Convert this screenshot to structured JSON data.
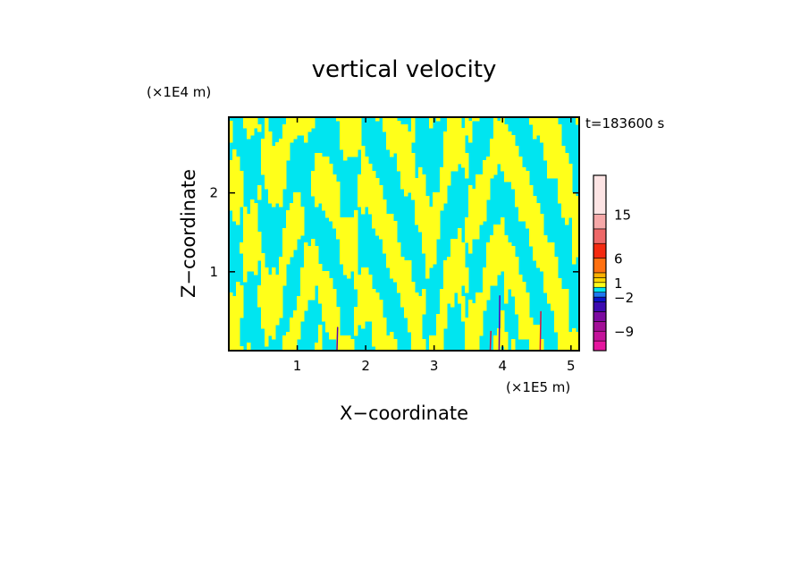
{
  "chart_data": {
    "type": "heatmap",
    "title": "vertical velocity",
    "xlabel": "X−coordinate",
    "ylabel": "Z−coordinate",
    "x_scale_label": "(×1E5 m)",
    "y_scale_label": "(×1E4 m)",
    "time_label": "t=183600 s",
    "xlim": [
      0,
      5.12
    ],
    "ylim": [
      0,
      2.96
    ],
    "x_ticks": [
      1,
      2,
      3,
      4,
      5
    ],
    "x_tick_labels": [
      "1",
      "2",
      "3",
      "4",
      "5"
    ],
    "y_ticks": [
      1,
      2
    ],
    "y_tick_labels": [
      "1",
      "2"
    ],
    "field_colors": {
      "negative": "#00e5f0",
      "positive": "#ffff1a",
      "strong_negative": "#5a00b0",
      "strong_positive": "#e0103a"
    },
    "colorbar": {
      "range": [
        -13,
        23
      ],
      "levels": [
        {
          "lo": -13,
          "hi": -11,
          "color": "#e6169e"
        },
        {
          "lo": -11,
          "hi": -9,
          "color": "#c4139a"
        },
        {
          "lo": -9,
          "hi": -7,
          "color": "#a30f97"
        },
        {
          "lo": -7,
          "hi": -5,
          "color": "#7c0aa0"
        },
        {
          "lo": -5,
          "hi": -3,
          "color": "#3c0ab0"
        },
        {
          "lo": -3,
          "hi": -2,
          "color": "#0a14c8"
        },
        {
          "lo": -2,
          "hi": -1,
          "color": "#1e78f0"
        },
        {
          "lo": -1,
          "hi": 0,
          "color": "#00e5f0"
        },
        {
          "lo": 0,
          "hi": 1,
          "color": "#ffff1a"
        },
        {
          "lo": 1,
          "hi": 2,
          "color": "#ffd700"
        },
        {
          "lo": 2,
          "hi": 3,
          "color": "#ffb000"
        },
        {
          "lo": 3,
          "hi": 6,
          "color": "#ff7010"
        },
        {
          "lo": 6,
          "hi": 9,
          "color": "#f42a10"
        },
        {
          "lo": 9,
          "hi": 12,
          "color": "#ee6868"
        },
        {
          "lo": 12,
          "hi": 15,
          "color": "#f6a8a8"
        },
        {
          "lo": 15,
          "hi": 23,
          "color": "#fde4e4"
        }
      ],
      "ticks": [
        15,
        6,
        1,
        -2,
        -9
      ],
      "tick_labels": [
        "15",
        "6",
        "1",
        "−2",
        "−9"
      ]
    }
  }
}
